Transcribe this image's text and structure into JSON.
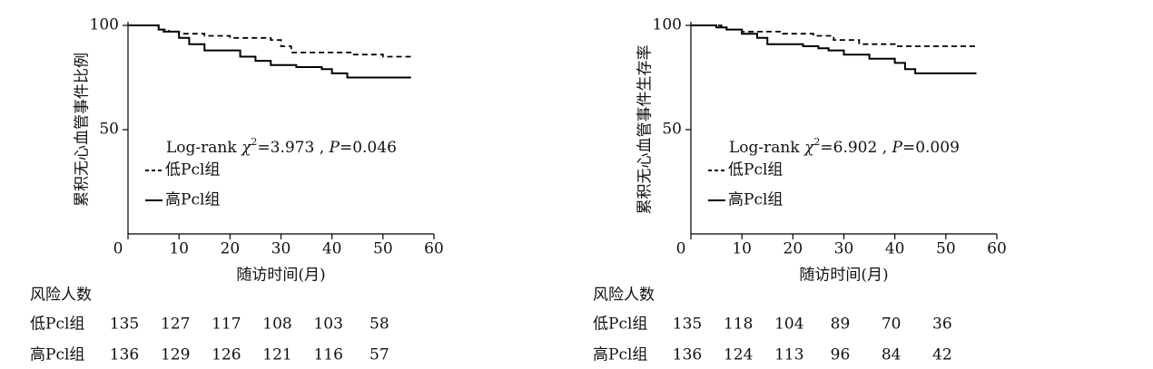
{
  "chart_data": [
    {
      "type": "line",
      "step": true,
      "y_label": "累积无心血管事件比例",
      "x_label": "随访时间(月)",
      "annotation": [
        {
          "text": "Log-rank "
        },
        {
          "text": "χ",
          "style": "italic"
        },
        {
          "text": "2",
          "style": "sup"
        },
        {
          "text": "=3.973 , "
        },
        {
          "text": "P",
          "style": "italic"
        },
        {
          "text": "=0.046"
        }
      ],
      "xlim": [
        0,
        60
      ],
      "xticks": [
        0,
        10,
        20,
        30,
        40,
        50,
        60
      ],
      "ylim": [
        0,
        100
      ],
      "yticks": [
        50,
        100
      ],
      "series": [
        {
          "name": "低Pcl组",
          "color": "#000000",
          "dash": true,
          "x": [
            0,
            6,
            8,
            10,
            15,
            20,
            28,
            30,
            32,
            44,
            50,
            55.5
          ],
          "values": [
            100,
            98,
            97,
            96,
            95,
            94,
            93,
            90,
            87,
            86,
            85,
            85
          ]
        },
        {
          "name": "高Pcl组",
          "color": "#000000",
          "dash": false,
          "x": [
            0,
            6,
            7,
            10,
            12,
            15,
            22,
            25,
            28,
            33,
            38,
            40,
            43,
            55.5
          ],
          "values": [
            100,
            98,
            97,
            94,
            91,
            88,
            85,
            83,
            81,
            80,
            79,
            77,
            75,
            75
          ]
        }
      ],
      "risk_table": {
        "title": "风险人数",
        "rows": [
          {
            "name": "低Pcl组",
            "values": [
              135,
              127,
              117,
              108,
              103,
              58
            ]
          },
          {
            "name": "高Pcl组",
            "values": [
              136,
              129,
              126,
              121,
              116,
              57
            ]
          }
        ]
      }
    },
    {
      "type": "line",
      "step": true,
      "y_label": "累积无心血管事件生存率",
      "x_label": "随访时间(月)",
      "annotation": [
        {
          "text": "Log-rank "
        },
        {
          "text": "χ",
          "style": "italic"
        },
        {
          "text": "2",
          "style": "sup"
        },
        {
          "text": "=6.902 , "
        },
        {
          "text": "P",
          "style": "italic"
        },
        {
          "text": "=0.009"
        }
      ],
      "xlim": [
        0,
        60
      ],
      "xticks": [
        0,
        10,
        20,
        30,
        40,
        50,
        60
      ],
      "ylim": [
        0,
        100
      ],
      "yticks": [
        50,
        100
      ],
      "series": [
        {
          "name": "低Pcl组",
          "color": "#000000",
          "dash": true,
          "x": [
            0,
            6,
            7,
            10,
            18,
            24,
            28,
            33,
            40,
            56
          ],
          "values": [
            100,
            99,
            98,
            97,
            96,
            95,
            93,
            91,
            90,
            90
          ]
        },
        {
          "name": "高Pcl组",
          "color": "#000000",
          "dash": false,
          "x": [
            0,
            5,
            7,
            10,
            13,
            15,
            22,
            25,
            27,
            30,
            35,
            40,
            42,
            44,
            56
          ],
          "values": [
            100,
            99,
            98,
            96,
            94,
            91,
            90,
            89,
            88,
            86,
            84,
            82,
            79,
            77,
            77
          ]
        }
      ],
      "risk_table": {
        "title": "风险人数",
        "rows": [
          {
            "name": "低Pcl组",
            "values": [
              135,
              118,
              104,
              89,
              70,
              36
            ]
          },
          {
            "name": "高Pcl组",
            "values": [
              136,
              124,
              113,
              96,
              84,
              42
            ]
          }
        ]
      }
    }
  ]
}
